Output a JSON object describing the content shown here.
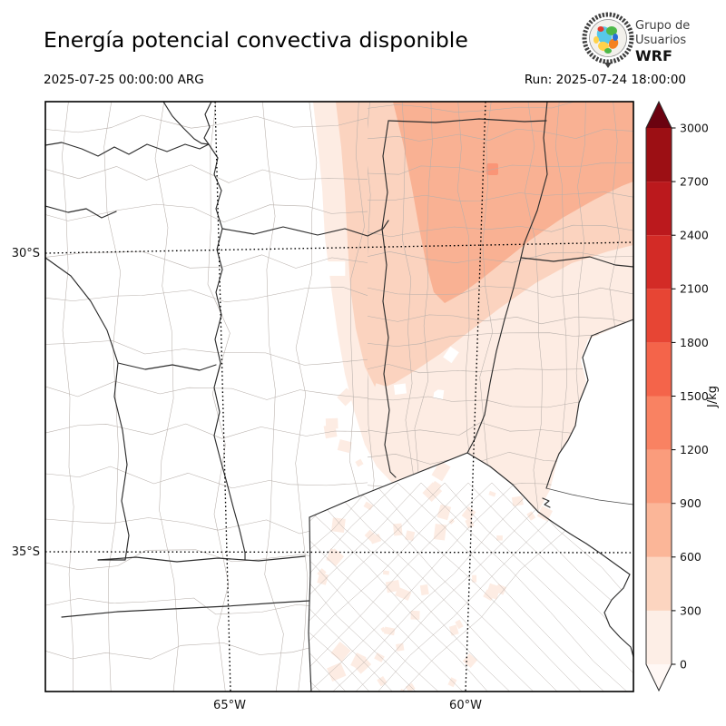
{
  "header": {
    "title": "Energía potencial convectiva disponible",
    "valid_time": "2025-07-25 00:00:00 ARG",
    "run_label": "Run: 2025-07-24 18:00:00"
  },
  "logo": {
    "line1": "Grupo de",
    "line2": "Usuarios",
    "line3": "WRF"
  },
  "map": {
    "lat_labels": [
      "30°S",
      "35°S"
    ],
    "lon_labels": [
      "65°W",
      "60°W"
    ],
    "fill_colors": {
      "level1": "#fdece3",
      "level2": "#fbd3bf",
      "level3": "#f9b193",
      "level4": "#fa9577"
    }
  },
  "colorbar": {
    "unit": "J/kg",
    "ticks": [
      "0",
      "300",
      "600",
      "900",
      "1200",
      "1500",
      "1800",
      "2100",
      "2400",
      "2700",
      "3000"
    ],
    "segment_colors": [
      "#fdeee6",
      "#fcd5c0",
      "#fbb698",
      "#fa9c7c",
      "#f98262",
      "#f4644a",
      "#e74534",
      "#d32b26",
      "#bb191d",
      "#9c0f14"
    ],
    "over_color": "#6b0210",
    "under_color": "#fff8f5"
  }
}
